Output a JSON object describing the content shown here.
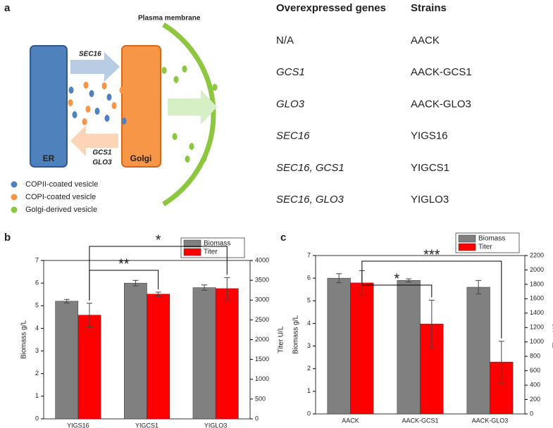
{
  "diagram": {
    "panel_label": "a",
    "er": "ER",
    "golgi": "Golgi",
    "forward_gene": "SEC16",
    "backward_genes": [
      "GCS1",
      "GLO3"
    ],
    "membrane": "Plasma membrane",
    "legend": [
      "COPII-coated vesicle",
      "COPI-coated vesicle",
      "Golgi-derived vesicle"
    ]
  },
  "table": {
    "headers": [
      "Overexpressed genes",
      "Strains"
    ],
    "rows": [
      [
        "N/A",
        "AACK"
      ],
      [
        "GCS1",
        "AACK-GCS1"
      ],
      [
        "GLO3",
        "AACK-GLO3"
      ],
      [
        "SEC16",
        "YIGS16"
      ],
      [
        "SEC16, GCS1",
        "YIGCS1"
      ],
      [
        "SEC16, GLO3",
        "YIGLO3"
      ]
    ]
  },
  "chart_data": [
    {
      "type": "bar",
      "panel_label": "b",
      "ylabel": "Biomass g/L",
      "y2label": "Titer U/L",
      "categories": [
        "YIGS16",
        "YIGCS1",
        "YIGLO3"
      ],
      "series": [
        {
          "name": "Biomass",
          "color": "#808080",
          "values": [
            5.2,
            6.0,
            5.8
          ],
          "errors": [
            0.08,
            0.12,
            0.12
          ]
        },
        {
          "name": "Titer",
          "color": "#ff0000",
          "axis": "y2",
          "values": [
            2620,
            3150,
            3290
          ],
          "errors": [
            300,
            50,
            280
          ]
        }
      ],
      "ylim": [
        0,
        7
      ],
      "yticks": [
        0,
        1,
        2,
        3,
        4,
        5,
        6,
        7
      ],
      "y2lim": [
        0,
        4000
      ],
      "y2ticks": [
        0,
        500,
        1000,
        1500,
        2000,
        2500,
        3000,
        3500,
        4000
      ],
      "annotations": [
        "**",
        "*"
      ],
      "legend": "upper right"
    },
    {
      "type": "bar",
      "panel_label": "c",
      "ylabel": "Biomass g/L",
      "y2label": "Titer U/L",
      "categories": [
        "AACK",
        "AACK-GCS1",
        "AACK-GLO3"
      ],
      "series": [
        {
          "name": "Biomass",
          "color": "#808080",
          "values": [
            6.0,
            5.9,
            5.6
          ],
          "errors": [
            0.2,
            0.07,
            0.3
          ]
        },
        {
          "name": "Titer",
          "color": "#ff0000",
          "axis": "y2",
          "values": [
            1820,
            1250,
            720
          ],
          "errors": [
            170,
            330,
            290
          ]
        }
      ],
      "ylim": [
        0,
        7
      ],
      "yticks": [
        0,
        1,
        2,
        3,
        4,
        5,
        6,
        7
      ],
      "y2lim": [
        0,
        2200
      ],
      "y2ticks": [
        0,
        200,
        400,
        600,
        800,
        1000,
        1200,
        1400,
        1600,
        1800,
        2000,
        2200
      ],
      "annotations": [
        "*",
        "***"
      ],
      "legend": "upper right"
    }
  ]
}
